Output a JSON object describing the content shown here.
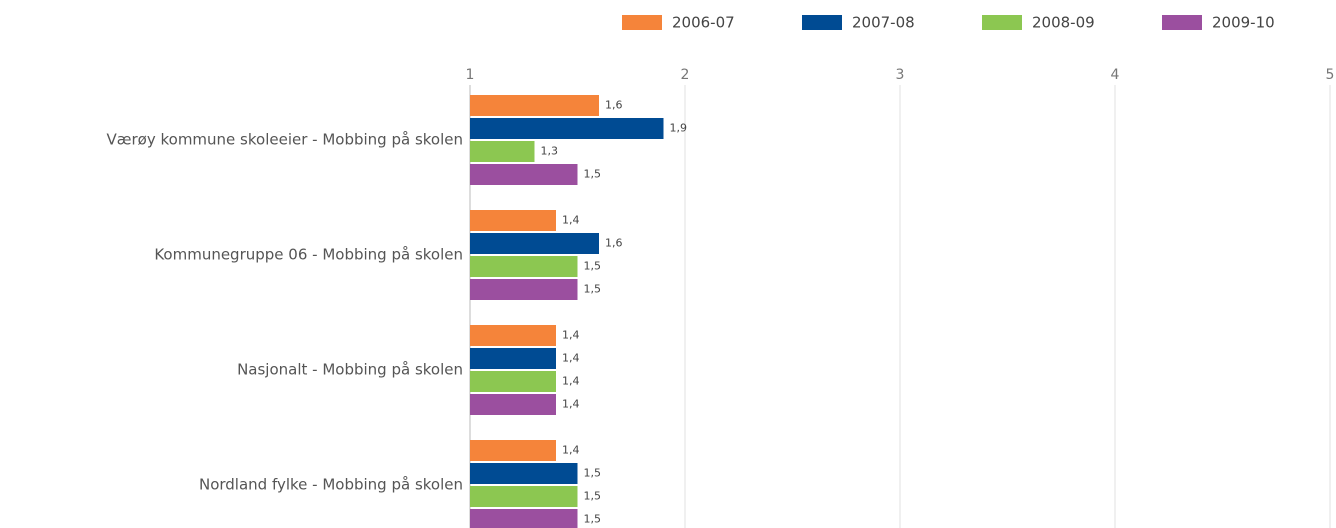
{
  "chart_data": {
    "type": "bar",
    "orientation": "horizontal",
    "categories": [
      "Værøy kommune skoleeier - Mobbing på skolen",
      "Kommunegruppe 06 - Mobbing på skolen",
      "Nasjonalt - Mobbing på skolen",
      "Nordland fylke - Mobbing på skolen"
    ],
    "series": [
      {
        "name": "2006-07",
        "color": "#f5843a",
        "values": [
          1.6,
          1.4,
          1.4,
          1.4
        ],
        "value_labels": [
          "1,6",
          "1,4",
          "1,4",
          "1,4"
        ]
      },
      {
        "name": "2007-08",
        "color": "#004b93",
        "values": [
          1.9,
          1.6,
          1.4,
          1.5
        ],
        "value_labels": [
          "1,9",
          "1,6",
          "1,4",
          "1,5"
        ]
      },
      {
        "name": "2008-09",
        "color": "#8cc751",
        "values": [
          1.3,
          1.5,
          1.4,
          1.5
        ],
        "value_labels": [
          "1,3",
          "1,5",
          "1,4",
          "1,5"
        ]
      },
      {
        "name": "2009-10",
        "color": "#9b4f9f",
        "values": [
          1.5,
          1.5,
          1.4,
          1.5
        ],
        "value_labels": [
          "1,5",
          "1,5",
          "1,4",
          "1,5"
        ]
      }
    ],
    "xlim": [
      1,
      5
    ],
    "xticks": [
      1,
      2,
      3,
      4,
      5
    ],
    "grid": true,
    "legend": "top-right"
  }
}
